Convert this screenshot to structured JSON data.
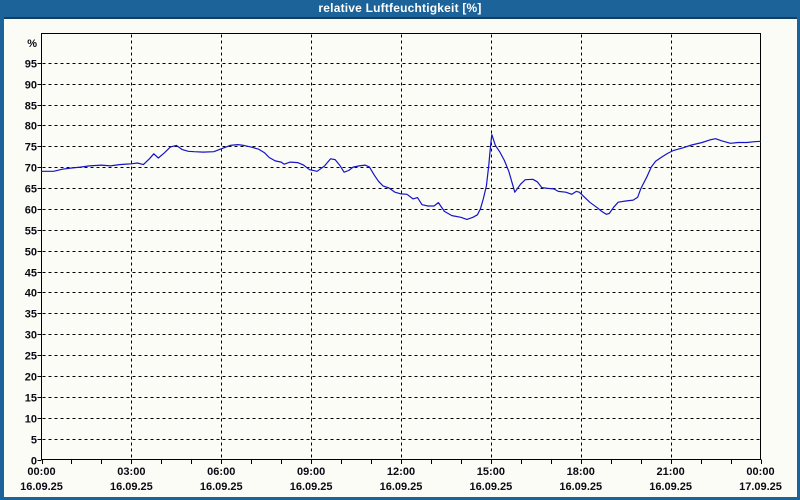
{
  "window": {
    "title": "relative Luftfeuchtigkeit [%]"
  },
  "colors": {
    "titlebar": "#1b6398",
    "titlebar_edge": "#123f61",
    "frame": "#1b6398",
    "window_bg": "#fcfcf7",
    "grid": "#000000",
    "axis": "#000000",
    "text": "#0a0a14",
    "title_text": "#ffffff",
    "line": "#1414c8"
  },
  "chart_data": {
    "type": "line",
    "title": "relative Luftfeuchtigkeit [%]",
    "ylabel": "%",
    "unit_label": "%",
    "grid": "dashed",
    "legend": "none",
    "ylim": [
      0,
      102
    ],
    "xlim_hours": [
      0,
      24
    ],
    "y_ticks": [
      0,
      5,
      10,
      15,
      20,
      25,
      30,
      35,
      40,
      45,
      50,
      55,
      60,
      65,
      70,
      75,
      80,
      85,
      90,
      95
    ],
    "x_grid_hours": [
      3,
      6,
      9,
      12,
      15,
      18,
      21
    ],
    "x_minor_tick_step_hours": 1,
    "x_major_ticks": [
      {
        "hour": 0,
        "time": "00:00",
        "date": "16.09.25"
      },
      {
        "hour": 3,
        "time": "03:00",
        "date": "16.09.25"
      },
      {
        "hour": 6,
        "time": "06:00",
        "date": "16.09.25"
      },
      {
        "hour": 9,
        "time": "09:00",
        "date": "16.09.25"
      },
      {
        "hour": 12,
        "time": "12:00",
        "date": "16.09.25"
      },
      {
        "hour": 15,
        "time": "15:00",
        "date": "16.09.25"
      },
      {
        "hour": 18,
        "time": "18:00",
        "date": "16.09.25"
      },
      {
        "hour": 21,
        "time": "21:00",
        "date": "16.09.25"
      },
      {
        "hour": 24,
        "time": "00:00",
        "date": "17.09.25"
      }
    ],
    "series": [
      {
        "name": "relative Luftfeuchtigkeit [%]",
        "color": "#1414c8",
        "points": [
          [
            0.0,
            69.0
          ],
          [
            0.4,
            69.0
          ],
          [
            0.7,
            69.5
          ],
          [
            1.0,
            69.8
          ],
          [
            1.3,
            70.0
          ],
          [
            1.6,
            70.3
          ],
          [
            2.0,
            70.5
          ],
          [
            2.3,
            70.3
          ],
          [
            2.6,
            70.6
          ],
          [
            3.0,
            70.8
          ],
          [
            3.2,
            71.0
          ],
          [
            3.4,
            70.6
          ],
          [
            3.6,
            72.0
          ],
          [
            3.75,
            73.2
          ],
          [
            3.9,
            72.2
          ],
          [
            4.1,
            73.4
          ],
          [
            4.3,
            74.8
          ],
          [
            4.5,
            75.2
          ],
          [
            4.7,
            74.2
          ],
          [
            4.9,
            73.8
          ],
          [
            5.1,
            73.7
          ],
          [
            5.4,
            73.6
          ],
          [
            5.75,
            73.7
          ],
          [
            6.0,
            74.4
          ],
          [
            6.3,
            75.2
          ],
          [
            6.55,
            75.4
          ],
          [
            6.75,
            75.2
          ],
          [
            7.0,
            74.8
          ],
          [
            7.25,
            74.3
          ],
          [
            7.45,
            73.4
          ],
          [
            7.6,
            72.3
          ],
          [
            7.8,
            71.5
          ],
          [
            8.0,
            71.2
          ],
          [
            8.1,
            70.7
          ],
          [
            8.3,
            71.2
          ],
          [
            8.55,
            71.1
          ],
          [
            8.75,
            70.5
          ],
          [
            8.95,
            69.4
          ],
          [
            9.2,
            69.0
          ],
          [
            9.45,
            70.3
          ],
          [
            9.65,
            72.0
          ],
          [
            9.8,
            71.8
          ],
          [
            9.95,
            70.5
          ],
          [
            10.1,
            68.8
          ],
          [
            10.25,
            69.2
          ],
          [
            10.4,
            70.0
          ],
          [
            10.6,
            70.3
          ],
          [
            10.8,
            70.5
          ],
          [
            10.95,
            70.0
          ],
          [
            11.1,
            68.2
          ],
          [
            11.25,
            66.6
          ],
          [
            11.4,
            65.5
          ],
          [
            11.6,
            65.0
          ],
          [
            11.8,
            64.0
          ],
          [
            12.0,
            63.6
          ],
          [
            12.2,
            63.5
          ],
          [
            12.4,
            62.4
          ],
          [
            12.55,
            62.7
          ],
          [
            12.7,
            61.0
          ],
          [
            12.9,
            60.7
          ],
          [
            13.1,
            60.7
          ],
          [
            13.25,
            61.5
          ],
          [
            13.45,
            59.4
          ],
          [
            13.7,
            58.4
          ],
          [
            14.0,
            58.0
          ],
          [
            14.2,
            57.5
          ],
          [
            14.4,
            58.0
          ],
          [
            14.55,
            58.6
          ],
          [
            14.65,
            60.0
          ],
          [
            14.75,
            62.5
          ],
          [
            14.85,
            65.5
          ],
          [
            14.93,
            70.5
          ],
          [
            14.98,
            74.5
          ],
          [
            15.03,
            77.8
          ],
          [
            15.15,
            75.2
          ],
          [
            15.3,
            73.6
          ],
          [
            15.45,
            71.6
          ],
          [
            15.6,
            69.0
          ],
          [
            15.8,
            64.0
          ],
          [
            16.0,
            66.0
          ],
          [
            16.15,
            67.0
          ],
          [
            16.4,
            67.1
          ],
          [
            16.55,
            66.5
          ],
          [
            16.7,
            65.1
          ],
          [
            16.9,
            64.9
          ],
          [
            17.1,
            64.8
          ],
          [
            17.25,
            64.2
          ],
          [
            17.5,
            64.0
          ],
          [
            17.7,
            63.5
          ],
          [
            17.85,
            64.2
          ],
          [
            17.95,
            64.0
          ],
          [
            18.1,
            63.0
          ],
          [
            18.3,
            61.6
          ],
          [
            18.55,
            60.3
          ],
          [
            18.7,
            59.4
          ],
          [
            18.85,
            58.7
          ],
          [
            18.95,
            58.9
          ],
          [
            19.1,
            60.4
          ],
          [
            19.25,
            61.6
          ],
          [
            19.5,
            61.9
          ],
          [
            19.75,
            62.1
          ],
          [
            19.9,
            62.8
          ],
          [
            20.0,
            64.8
          ],
          [
            20.2,
            67.6
          ],
          [
            20.35,
            70.0
          ],
          [
            20.5,
            71.4
          ],
          [
            20.7,
            72.4
          ],
          [
            20.9,
            73.3
          ],
          [
            21.1,
            74.0
          ],
          [
            21.4,
            74.6
          ],
          [
            21.7,
            75.3
          ],
          [
            22.05,
            75.9
          ],
          [
            22.35,
            76.6
          ],
          [
            22.5,
            76.8
          ],
          [
            22.7,
            76.3
          ],
          [
            23.0,
            75.7
          ],
          [
            23.25,
            75.9
          ],
          [
            23.55,
            75.9
          ],
          [
            23.8,
            76.1
          ],
          [
            24.0,
            76.2
          ]
        ]
      }
    ]
  }
}
